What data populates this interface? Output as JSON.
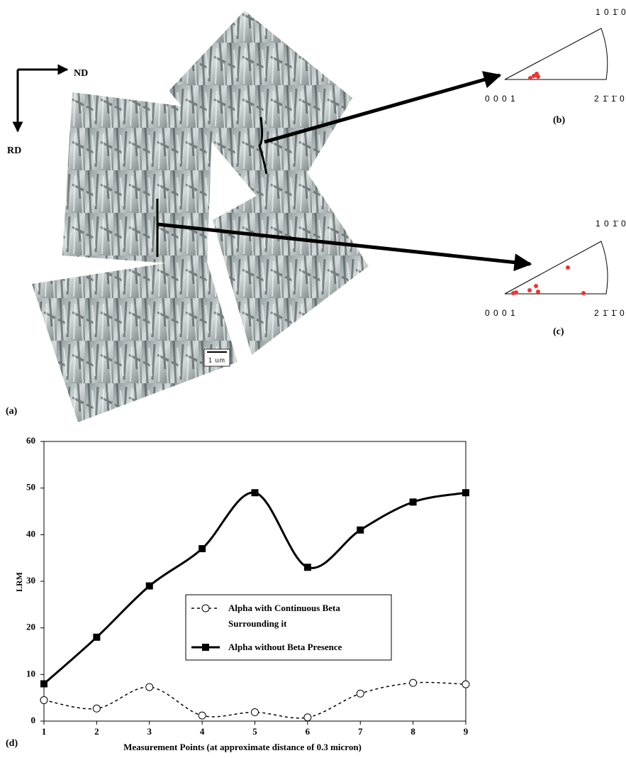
{
  "figure": {
    "panel_a": "(a)",
    "panel_b": "(b)",
    "panel_c": "(c)",
    "panel_d": "(d)",
    "nd": "ND",
    "rd": "RD",
    "scale_bar": "1 um",
    "pole_b": {
      "top": "1 0 1̄ 0",
      "left": "0 0 0 1",
      "right": "2 1̄ 1̄ 0"
    },
    "pole_c": {
      "top": "1 0 1̄ 0",
      "left": "0 0 0 1",
      "right": "2 1̄ 1̄ 0"
    }
  },
  "chart_data": {
    "type": "line",
    "x": [
      1,
      2,
      3,
      4,
      5,
      6,
      7,
      8,
      9
    ],
    "xlabel": "Measurement Points (at approximate distance of 0.3 micron)",
    "ylabel": "LRM",
    "xlim": [
      1,
      9
    ],
    "xticks": [
      1,
      2,
      3,
      4,
      5,
      6,
      7,
      8,
      9
    ],
    "ylim": [
      0,
      60
    ],
    "yticks": [
      0,
      10,
      20,
      30,
      40,
      50,
      60
    ],
    "series": [
      {
        "name": "Alpha with Continuous Beta Surrounding it",
        "color": "#000000",
        "marker": "circle",
        "line_style": "dashed",
        "values": [
          4.5,
          2.7,
          7.3,
          1.2,
          1.9,
          0.8,
          5.9,
          8.2,
          7.9
        ]
      },
      {
        "name": "Alpha without Beta Presence",
        "color": "#000000",
        "marker": "square",
        "line_style": "solid",
        "values": [
          8,
          18,
          29,
          37,
          49,
          33,
          41,
          47,
          49
        ]
      }
    ]
  }
}
